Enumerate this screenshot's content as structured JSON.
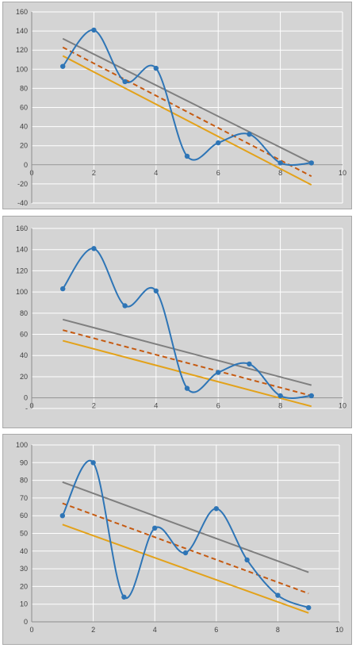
{
  "chart_data": [
    {
      "type": "line",
      "xlim": [
        0,
        10
      ],
      "ylim": [
        -40,
        160
      ],
      "xticks": [
        "0",
        "2",
        "4",
        "6",
        "8",
        "10"
      ],
      "yticks": [
        "-40",
        "-20",
        "0",
        "20",
        "40",
        "60",
        "80",
        "100",
        "120",
        "140",
        "160"
      ],
      "grid": true,
      "series": [
        {
          "style": "smooth-markers",
          "color": "#2e75b6",
          "x": [
            1,
            2,
            3,
            4,
            5,
            6,
            7,
            8,
            9
          ],
          "y": [
            103,
            141,
            87,
            101,
            9,
            23,
            32,
            2,
            2
          ]
        },
        {
          "style": "solid",
          "color": "#7f7f7f",
          "x": [
            1,
            9
          ],
          "y": [
            132,
            2
          ]
        },
        {
          "style": "dashed",
          "color": "#c55a11",
          "x": [
            1,
            9
          ],
          "y": [
            123,
            -12
          ]
        },
        {
          "style": "solid",
          "color": "#e3a21a",
          "x": [
            1,
            9
          ],
          "y": [
            114,
            -21
          ]
        }
      ]
    },
    {
      "type": "line",
      "xlim": [
        0,
        10
      ],
      "ylim": [
        -10,
        160
      ],
      "xticks": [
        "0",
        "2",
        "4",
        "6",
        "8",
        "10"
      ],
      "yticks": [
        "-",
        "0",
        "20",
        "40",
        "60",
        "80",
        "100",
        "120",
        "140",
        "160"
      ],
      "grid": true,
      "series": [
        {
          "style": "smooth-markers",
          "color": "#2e75b6",
          "x": [
            1,
            2,
            3,
            4,
            5,
            6,
            7,
            8,
            9
          ],
          "y": [
            103,
            141,
            87,
            101,
            9,
            24,
            32,
            2,
            2
          ]
        },
        {
          "style": "solid",
          "color": "#7f7f7f",
          "x": [
            1,
            9
          ],
          "y": [
            74,
            12
          ]
        },
        {
          "style": "dashed",
          "color": "#c55a11",
          "x": [
            1,
            9
          ],
          "y": [
            64,
            2
          ]
        },
        {
          "style": "solid",
          "color": "#e3a21a",
          "x": [
            1,
            9
          ],
          "y": [
            54,
            -8
          ]
        }
      ]
    },
    {
      "type": "line",
      "xlim": [
        0,
        10
      ],
      "ylim": [
        0,
        100
      ],
      "xticks": [
        "0",
        "2",
        "4",
        "6",
        "8",
        "10"
      ],
      "yticks": [
        "0",
        "10",
        "20",
        "30",
        "40",
        "50",
        "60",
        "70",
        "80",
        "90",
        "100"
      ],
      "grid": true,
      "series": [
        {
          "style": "smooth-markers",
          "color": "#2e75b6",
          "x": [
            1,
            2,
            3,
            4,
            5,
            6,
            7,
            8,
            9
          ],
          "y": [
            60,
            90,
            14,
            53,
            39,
            64,
            35,
            15,
            8
          ]
        },
        {
          "style": "solid",
          "color": "#7f7f7f",
          "x": [
            1,
            9
          ],
          "y": [
            79,
            28
          ]
        },
        {
          "style": "dashed",
          "color": "#c55a11",
          "x": [
            1,
            9
          ],
          "y": [
            67,
            16
          ]
        },
        {
          "style": "solid",
          "color": "#e3a21a",
          "x": [
            1,
            9
          ],
          "y": [
            55,
            5
          ]
        }
      ]
    }
  ]
}
